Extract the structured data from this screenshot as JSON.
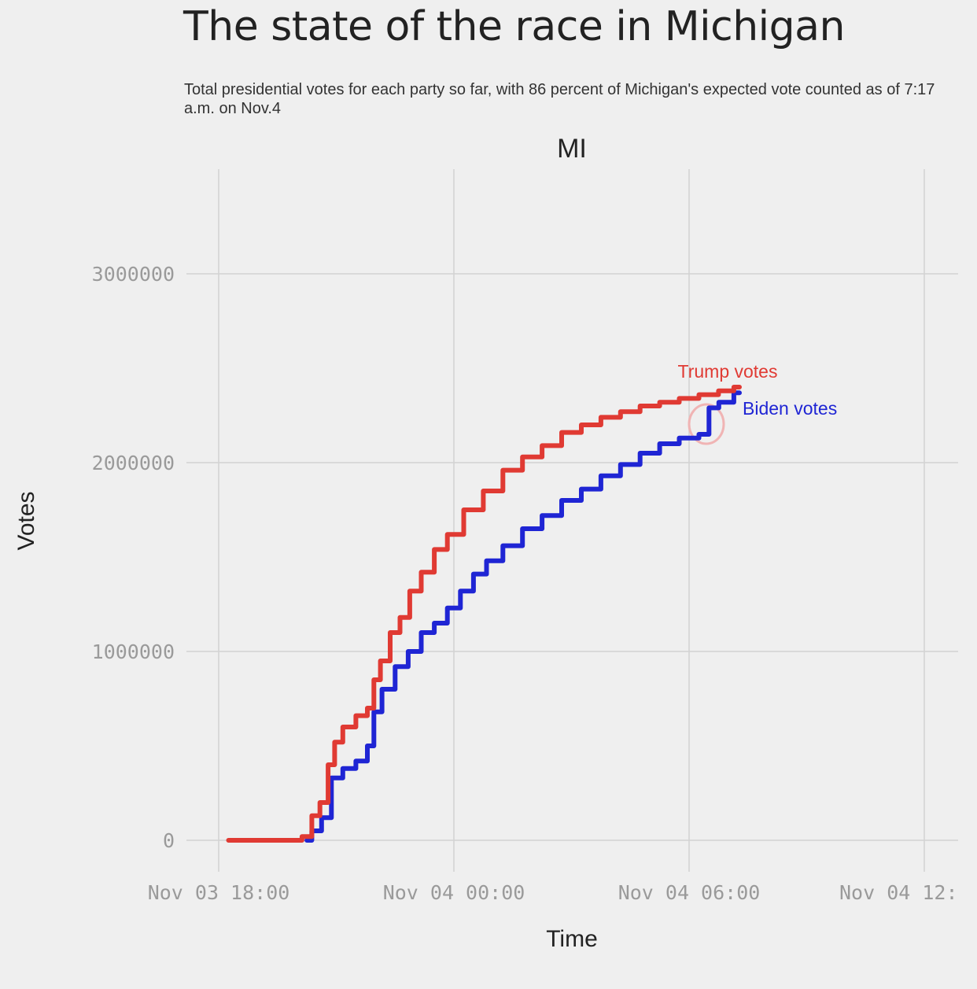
{
  "title": "The state of the race in Michigan",
  "subtitle": "Total presidential votes for each party so far, with 86 percent of Michigan's expected vote counted as of 7:17 a.m. on Nov.4",
  "chart_data": {
    "type": "line",
    "panel_title": "MI",
    "xlabel": "Time",
    "ylabel": "Votes",
    "x_ticks": [
      "Nov 03 18:00",
      "Nov 04 00:00",
      "Nov 04 06:00",
      "Nov 04 12:"
    ],
    "y_ticks": [
      "0",
      "1000000",
      "2000000",
      "3000000"
    ],
    "ylim": [
      0,
      3100000
    ],
    "grid": true,
    "annotation": "circled jump in Biden votes near Nov 04 06:30",
    "series": [
      {
        "name": "Trump votes",
        "color": "#e03a33",
        "points": [
          [
            "Nov 03 18:15",
            0
          ],
          [
            "Nov 03 20:00",
            0
          ],
          [
            "Nov 03 20:15",
            20000
          ],
          [
            "Nov 03 20:30",
            130000
          ],
          [
            "Nov 03 20:40",
            200000
          ],
          [
            "Nov 03 20:55",
            400000
          ],
          [
            "Nov 03 21:00",
            520000
          ],
          [
            "Nov 03 21:20",
            600000
          ],
          [
            "Nov 03 21:40",
            660000
          ],
          [
            "Nov 03 21:55",
            700000
          ],
          [
            "Nov 03 22:00",
            850000
          ],
          [
            "Nov 03 22:15",
            950000
          ],
          [
            "Nov 03 22:30",
            1100000
          ],
          [
            "Nov 03 22:45",
            1180000
          ],
          [
            "Nov 03 23:00",
            1320000
          ],
          [
            "Nov 03 23:20",
            1420000
          ],
          [
            "Nov 03 23:40",
            1540000
          ],
          [
            "Nov 04 00:00",
            1620000
          ],
          [
            "Nov 04 00:30",
            1750000
          ],
          [
            "Nov 04 01:00",
            1850000
          ],
          [
            "Nov 04 01:30",
            1960000
          ],
          [
            "Nov 04 02:00",
            2030000
          ],
          [
            "Nov 04 02:30",
            2090000
          ],
          [
            "Nov 04 03:00",
            2160000
          ],
          [
            "Nov 04 03:30",
            2200000
          ],
          [
            "Nov 04 04:00",
            2240000
          ],
          [
            "Nov 04 04:30",
            2270000
          ],
          [
            "Nov 04 05:00",
            2300000
          ],
          [
            "Nov 04 05:30",
            2320000
          ],
          [
            "Nov 04 06:00",
            2340000
          ],
          [
            "Nov 04 06:30",
            2360000
          ],
          [
            "Nov 04 07:00",
            2380000
          ],
          [
            "Nov 04 07:17",
            2400000
          ]
        ]
      },
      {
        "name": "Biden votes",
        "color": "#1f25d4",
        "points": [
          [
            "Nov 03 20:15",
            0
          ],
          [
            "Nov 03 20:30",
            50000
          ],
          [
            "Nov 03 20:45",
            120000
          ],
          [
            "Nov 03 21:00",
            330000
          ],
          [
            "Nov 03 21:20",
            380000
          ],
          [
            "Nov 03 21:40",
            420000
          ],
          [
            "Nov 03 21:55",
            500000
          ],
          [
            "Nov 03 22:00",
            680000
          ],
          [
            "Nov 03 22:20",
            800000
          ],
          [
            "Nov 03 22:40",
            920000
          ],
          [
            "Nov 03 23:00",
            1000000
          ],
          [
            "Nov 03 23:20",
            1100000
          ],
          [
            "Nov 03 23:40",
            1150000
          ],
          [
            "Nov 04 00:00",
            1230000
          ],
          [
            "Nov 04 00:20",
            1320000
          ],
          [
            "Nov 04 00:40",
            1410000
          ],
          [
            "Nov 04 01:00",
            1480000
          ],
          [
            "Nov 04 01:30",
            1560000
          ],
          [
            "Nov 04 02:00",
            1650000
          ],
          [
            "Nov 04 02:30",
            1720000
          ],
          [
            "Nov 04 03:00",
            1800000
          ],
          [
            "Nov 04 03:30",
            1860000
          ],
          [
            "Nov 04 04:00",
            1930000
          ],
          [
            "Nov 04 04:30",
            1990000
          ],
          [
            "Nov 04 05:00",
            2050000
          ],
          [
            "Nov 04 05:30",
            2100000
          ],
          [
            "Nov 04 06:00",
            2130000
          ],
          [
            "Nov 04 06:30",
            2150000
          ],
          [
            "Nov 04 06:31",
            2290000
          ],
          [
            "Nov 04 07:00",
            2320000
          ],
          [
            "Nov 04 07:17",
            2370000
          ]
        ]
      }
    ]
  }
}
